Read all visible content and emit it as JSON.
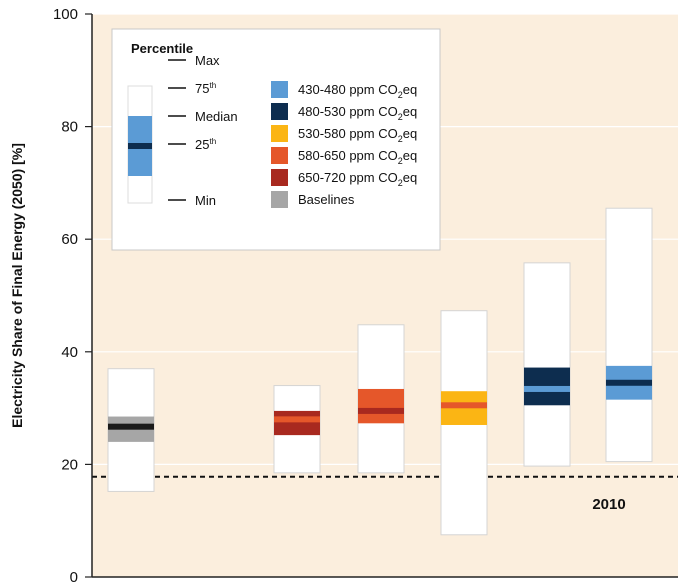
{
  "chart_data": {
    "type": "boxplot",
    "ylabel": "Electricity Share of Final Energy (2050) [%]",
    "ylim": [
      0,
      100
    ],
    "yticks": [
      "0",
      "20",
      "40",
      "60",
      "80",
      "100"
    ],
    "grid": true,
    "reference_line": {
      "value": 17.8,
      "label": "2010"
    },
    "legend": {
      "placement": "top-left",
      "percentile_title": "Percentile",
      "percentile_labels": {
        "max": "Max",
        "p75": "75",
        "p75_sup": "th",
        "median": "Median",
        "p25": "25",
        "p25_sup": "th",
        "min": "Min"
      },
      "series_labels": [
        {
          "key": "c430",
          "pre": "430-480 ppm CO",
          "sub": "2",
          "post": "eq"
        },
        {
          "key": "c480",
          "pre": "480-530 ppm CO",
          "sub": "2",
          "post": "eq"
        },
        {
          "key": "c530",
          "pre": "530-580 ppm CO",
          "sub": "2",
          "post": "eq"
        },
        {
          "key": "c580",
          "pre": "580-650 ppm CO",
          "sub": "2",
          "post": "eq"
        },
        {
          "key": "c650",
          "pre": "650-720 ppm CO",
          "sub": "2",
          "post": "eq"
        },
        {
          "key": "baseline",
          "pre": "Baselines",
          "sub": "",
          "post": ""
        }
      ]
    },
    "colors": {
      "c430": "#5b9bd5",
      "c480": "#0d2d4f",
      "c530": "#fbb514",
      "c580": "#e5572a",
      "c650": "#a8291f",
      "baseline": "#a6a6a6",
      "plot_background": "#fbeedd",
      "median_dark": "#1a1a1a",
      "median_light": "#5b9bd5",
      "median_red": "#c0392b"
    },
    "boxes": [
      {
        "series": "baseline",
        "min": 15.2,
        "p25": 24.0,
        "median": 26.7,
        "p75": 28.5,
        "max": 37.0,
        "median_color": "#1a1a1a"
      },
      {
        "series": "c650",
        "min": 18.5,
        "p25": 25.2,
        "median": 28.0,
        "p75": 29.5,
        "max": 34.0,
        "median_color": "#e5572a"
      },
      {
        "series": "c580",
        "min": 18.5,
        "p25": 27.3,
        "median": 29.5,
        "p75": 33.4,
        "max": 44.8,
        "median_color": "#a8291f"
      },
      {
        "series": "c530",
        "min": 7.5,
        "p25": 27.0,
        "median": 30.5,
        "p75": 33.0,
        "max": 47.3,
        "median_color": "#e5572a"
      },
      {
        "series": "c480",
        "min": 19.7,
        "p25": 30.5,
        "median": 33.4,
        "p75": 37.2,
        "max": 55.8,
        "median_color": "#5b9bd5"
      },
      {
        "series": "c430",
        "min": 20.5,
        "p25": 31.5,
        "median": 34.5,
        "p75": 37.5,
        "max": 65.5,
        "median_color": "#0d2d4f"
      }
    ]
  }
}
